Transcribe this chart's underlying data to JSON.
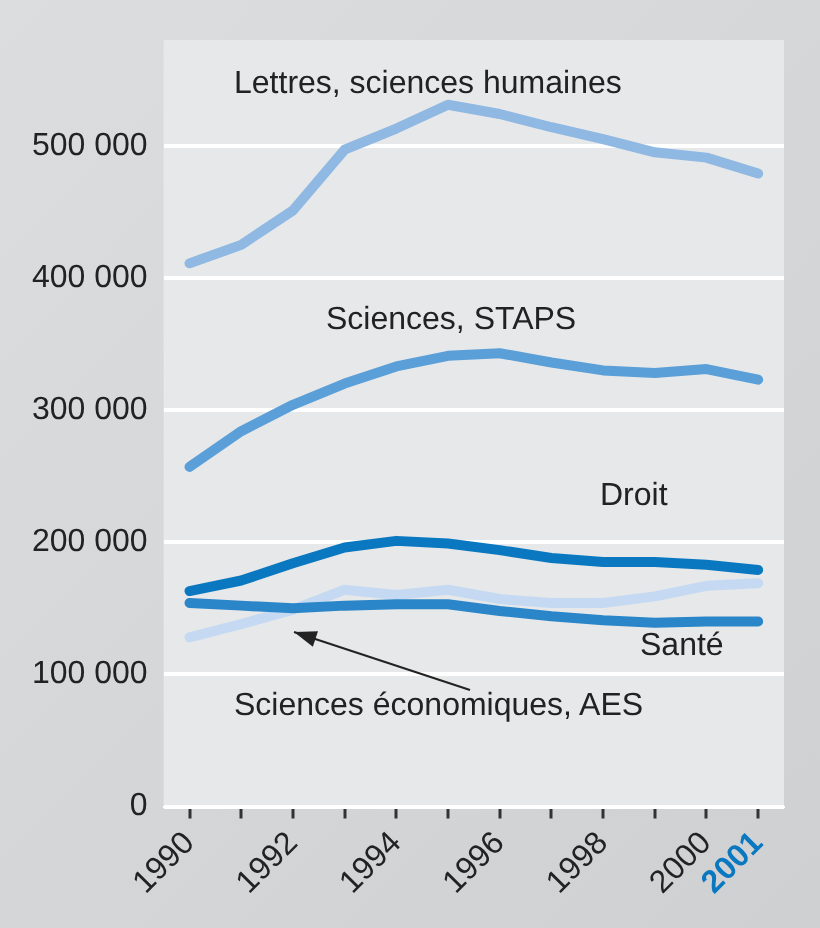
{
  "chart_data": {
    "type": "line",
    "x": [
      1990,
      1991,
      1992,
      1993,
      1994,
      1995,
      1996,
      1997,
      1998,
      1999,
      2000,
      2001
    ],
    "series": [
      {
        "name": "Lettres, sciences humaines",
        "color": "#8fb8e3",
        "values": [
          411000,
          425000,
          451000,
          497000,
          513000,
          531000,
          524000,
          514000,
          505000,
          495000,
          491000,
          479000
        ]
      },
      {
        "name": "Sciences, STAPS",
        "color": "#5a9fd8",
        "values": [
          257000,
          284000,
          304000,
          320000,
          333000,
          341000,
          343000,
          336000,
          330000,
          328000,
          331000,
          323000
        ]
      },
      {
        "name": "Droit",
        "color": "#0a78c0",
        "values": [
          163000,
          171000,
          184000,
          196000,
          201000,
          199000,
          194000,
          188000,
          185000,
          185000,
          183000,
          179000
        ]
      },
      {
        "name": "Santé",
        "color": "#2a86c8",
        "values": [
          154000,
          152000,
          150000,
          152000,
          153000,
          153000,
          148000,
          144000,
          141000,
          139000,
          140000,
          140000
        ]
      },
      {
        "name": "Sciences économiques, AES",
        "color": "#c5daf2",
        "values": [
          128000,
          138000,
          149000,
          164000,
          160000,
          164000,
          157000,
          154000,
          154000,
          159000,
          167000,
          169000
        ]
      }
    ],
    "xlim": [
      1989.5,
      2001.5
    ],
    "xticks": [
      1990,
      {
        "value": 1991,
        "label": null
      },
      1992,
      {
        "value": 1993,
        "label": null
      },
      1994,
      {
        "value": 1995,
        "label": null
      },
      1996,
      {
        "value": 1997,
        "label": null
      },
      1998,
      {
        "value": 1999,
        "label": null
      },
      2000,
      2001
    ],
    "ylim": [
      0,
      580000
    ],
    "yticks": [
      0,
      {
        "value": 100000,
        "label": "100 000"
      },
      {
        "value": 200000,
        "label": "200 000"
      },
      {
        "value": 300000,
        "label": "300 000"
      },
      {
        "value": 400000,
        "label": "400 000"
      },
      {
        "value": 500000,
        "label": "500 000"
      }
    ],
    "grid": "y",
    "legend": false,
    "marker": "none",
    "line_style": "solid"
  }
}
